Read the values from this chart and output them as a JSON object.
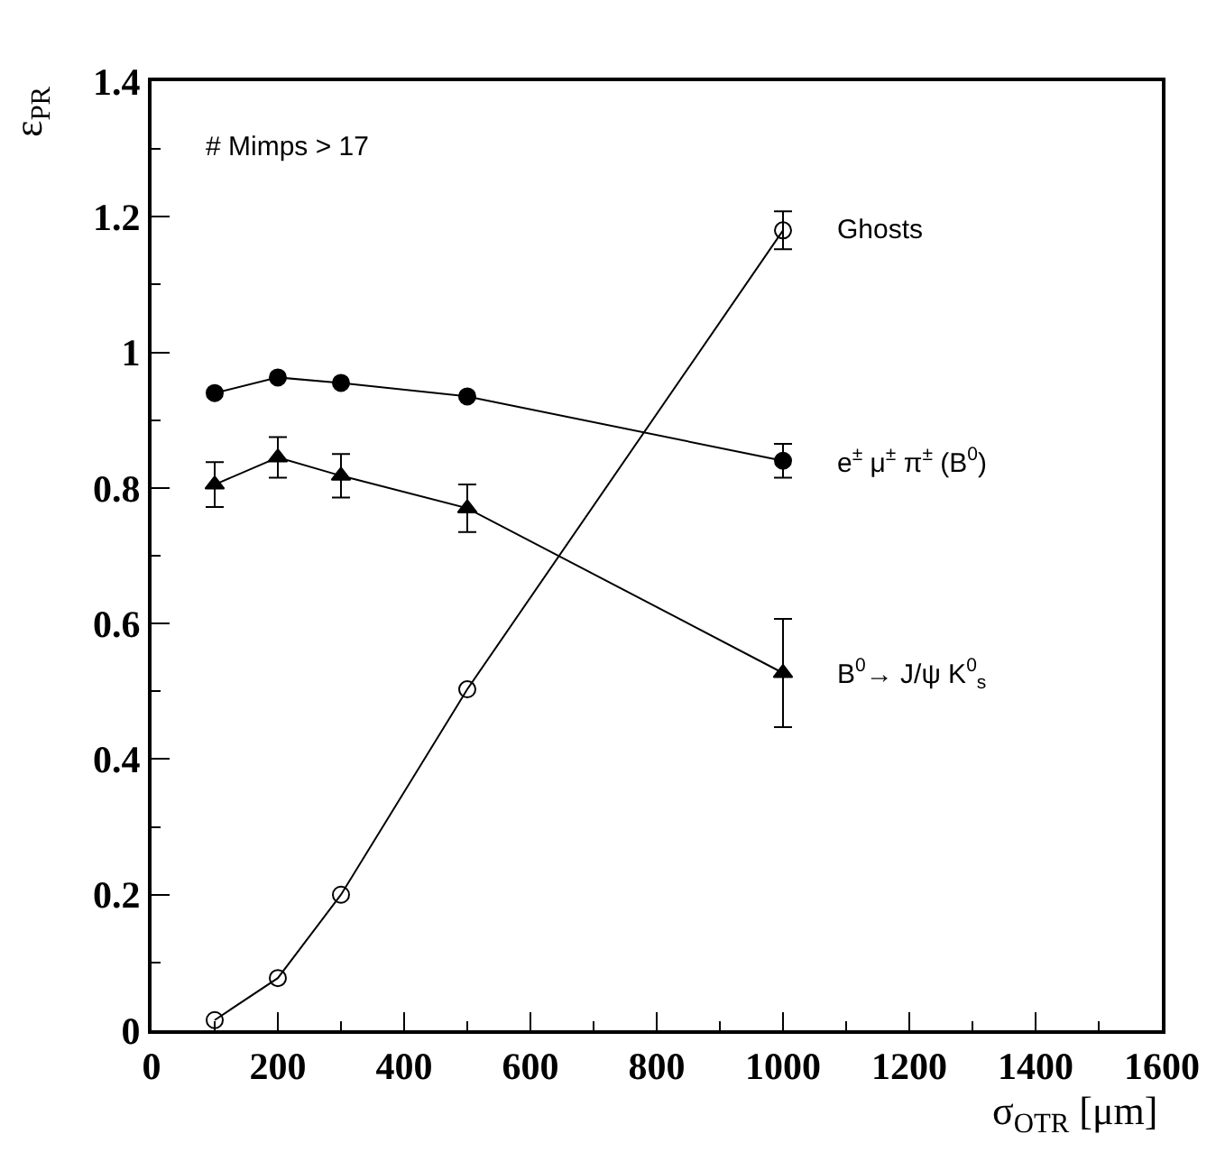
{
  "chart_data": {
    "type": "line",
    "xlabel": "σ$_{OTR}$ [μm]",
    "ylabel": "ε$_{PR}$",
    "annotations": [
      "# Mimps > 17"
    ],
    "xlim": [
      0,
      1600
    ],
    "xticks": [
      0,
      200,
      400,
      600,
      800,
      1000,
      1200,
      1400,
      1600
    ],
    "ylim": [
      0,
      1.4
    ],
    "yticks": [
      0,
      0.2,
      0.4,
      0.6,
      0.8,
      1,
      1.2,
      1.4
    ],
    "grid": false,
    "legend": false,
    "series": [
      {
        "name": "Ghosts",
        "color": "#000000",
        "marker": "circle-open",
        "x": [
          100,
          200,
          300,
          500,
          1000
        ],
        "values": [
          0.015,
          0.077,
          0.2,
          0.503,
          1.18
        ],
        "errors": [
          null,
          null,
          null,
          null,
          0.028
        ]
      },
      {
        "name": "e$^{±}$ μ$^{±}$ π$^{±}$ (B$^{0}$)",
        "color": "#000000",
        "marker": "circle",
        "x": [
          100,
          200,
          300,
          500,
          1000
        ],
        "values": [
          0.94,
          0.963,
          0.955,
          0.935,
          0.84
        ],
        "errors": [
          null,
          null,
          null,
          null,
          0.025
        ]
      },
      {
        "name": "B$^{0}$→ J/ψ K$^{0}$$_{s}$",
        "color": "#000000",
        "marker": "triangle",
        "x": [
          100,
          200,
          300,
          500,
          1000
        ],
        "values": [
          0.805,
          0.845,
          0.818,
          0.77,
          0.527
        ],
        "errors": [
          0.033,
          0.03,
          0.032,
          0.035,
          0.08
        ]
      }
    ]
  }
}
